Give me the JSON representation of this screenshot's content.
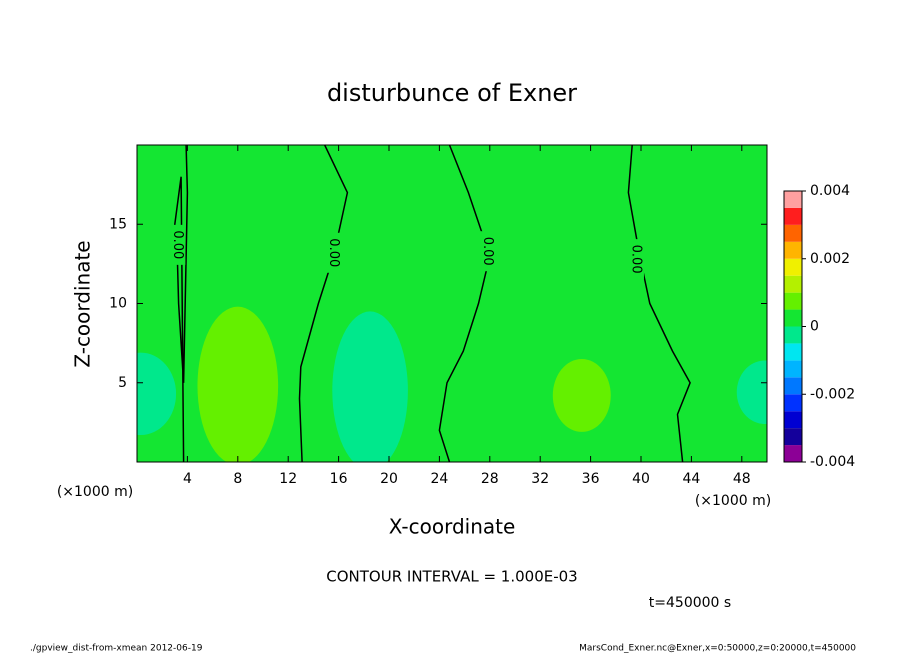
{
  "chart_data": {
    "type": "contour",
    "title": "disturbunce of Exner",
    "x_label": "X-coordinate",
    "y_label": "Z-coordinate",
    "x_unit_left": "(×1000 m)",
    "x_unit_right": "(×1000 m)",
    "xlim": [
      0,
      50
    ],
    "ylim": [
      0,
      20
    ],
    "xticks": [
      4,
      8,
      12,
      16,
      20,
      24,
      28,
      32,
      36,
      40,
      44,
      48
    ],
    "yticks": [
      5,
      10,
      15
    ],
    "colorbar": {
      "levels": [
        -0.004,
        -0.0035,
        -0.003,
        -0.0025,
        -0.002,
        -0.0015,
        -0.001,
        -0.0005,
        0,
        0.0005,
        0.001,
        0.0015,
        0.002,
        0.0025,
        0.003,
        0.0035,
        0.004
      ],
      "colors": [
        "#8c0096",
        "#14009b",
        "#0000d2",
        "#0032ff",
        "#0078ff",
        "#00b4ff",
        "#00e6f0",
        "#00e88c",
        "#14e632",
        "#64f000",
        "#b4f000",
        "#f0f000",
        "#ffb400",
        "#ff6400",
        "#ff1e1e",
        "#ffa0a0"
      ],
      "ticks": [
        -0.004,
        -0.002,
        0,
        0.002,
        0.004
      ]
    },
    "background_bin": 8,
    "regions": [
      {
        "bin": 9,
        "x": 8.0,
        "z": 4.8,
        "rx": 3.2,
        "rz": 5.0
      },
      {
        "bin": 9,
        "x": 35.3,
        "z": 4.2,
        "rx": 2.3,
        "rz": 2.3
      },
      {
        "bin": 7,
        "x": 18.5,
        "z": 4.5,
        "rx": 3.0,
        "rz": 5.0
      },
      {
        "bin": 7,
        "x": 0.3,
        "z": 4.3,
        "rx": 2.8,
        "rz": 2.6
      },
      {
        "bin": 7,
        "x": 49.8,
        "z": 4.4,
        "rx": 2.2,
        "rz": 2.0
      }
    ],
    "contours": [
      {
        "label": "0.00",
        "x": [
          3.9,
          4.0,
          3.7,
          3.3,
          3.2,
          3.0,
          3.5,
          3.7
        ],
        "z": [
          20,
          17,
          5,
          10,
          13,
          15,
          18,
          0
        ],
        "label_at": [
          3.2,
          13.7
        ]
      },
      {
        "label": "0.00",
        "x": [
          14.9,
          16.7,
          15.6,
          14.4,
          13.0,
          12.9,
          13.1
        ],
        "z": [
          20,
          17,
          13,
          10,
          6,
          4,
          0
        ],
        "label_at": [
          15.6,
          13.2
        ]
      },
      {
        "label": "0.00",
        "x": [
          24.8,
          26.3,
          28.0,
          27.1,
          25.9,
          24.6,
          24.0,
          24.8
        ],
        "z": [
          20,
          17,
          13,
          10,
          7,
          5,
          2,
          0
        ],
        "label_at": [
          27.8,
          13.3
        ]
      },
      {
        "label": "0.00",
        "x": [
          39.3,
          39.0,
          39.9,
          40.7,
          42.5,
          43.9,
          42.9,
          43.3
        ],
        "z": [
          20,
          17,
          13,
          10,
          7,
          5,
          3,
          0
        ],
        "label_at": [
          39.6,
          12.8
        ]
      }
    ],
    "contour_interval_text": "CONTOUR INTERVAL = 1.000E-03",
    "time_text": "t=450000 s",
    "footer_left": "./gpview_dist-from-xmean  2012-06-19",
    "footer_right": "MarsCond_Exner.nc@Exner,x=0:50000,z=0:20000,t=450000"
  }
}
